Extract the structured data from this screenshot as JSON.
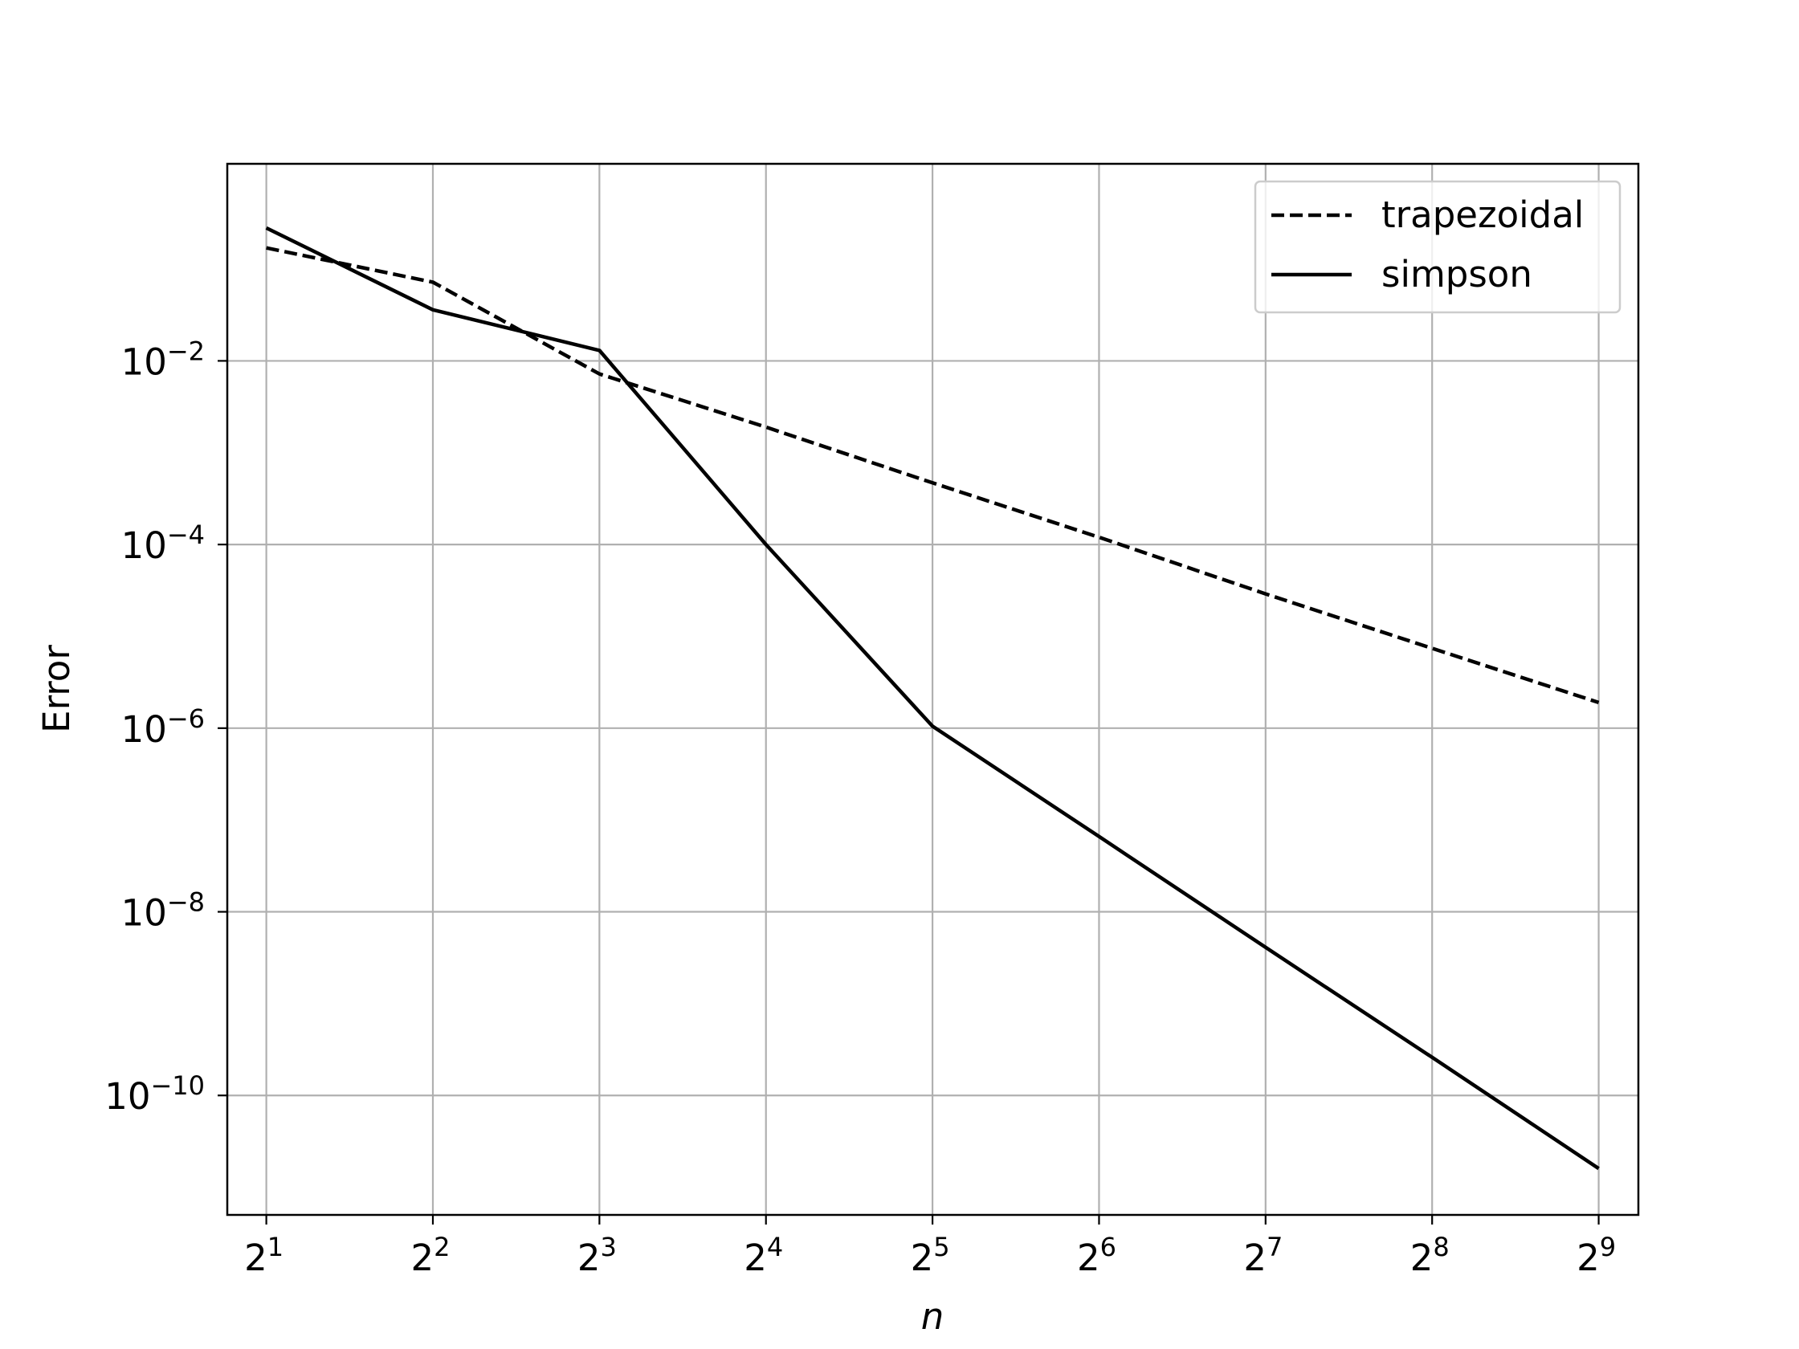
{
  "chart_data": {
    "type": "line",
    "title": "",
    "xlabel": "n",
    "ylabel": "Error",
    "x_scale": "log2",
    "y_scale": "log10",
    "x": [
      2,
      4,
      8,
      16,
      32,
      64,
      128,
      256,
      512
    ],
    "x_tick_labels": [
      {
        "base": "2",
        "exp": "1"
      },
      {
        "base": "2",
        "exp": "2"
      },
      {
        "base": "2",
        "exp": "3"
      },
      {
        "base": "2",
        "exp": "4"
      },
      {
        "base": "2",
        "exp": "5"
      },
      {
        "base": "2",
        "exp": "6"
      },
      {
        "base": "2",
        "exp": "7"
      },
      {
        "base": "2",
        "exp": "8"
      },
      {
        "base": "2",
        "exp": "9"
      }
    ],
    "y_ticks": [
      {
        "value": 0.01,
        "base": "10",
        "exp": "−2"
      },
      {
        "value": 0.0001,
        "base": "10",
        "exp": "−4"
      },
      {
        "value": 1e-06,
        "base": "10",
        "exp": "−6"
      },
      {
        "value": 1e-08,
        "base": "10",
        "exp": "−8"
      },
      {
        "value": 1e-10,
        "base": "10",
        "exp": "−10"
      }
    ],
    "xlim": [
      1.7,
      604
    ],
    "ylim": [
      5e-12,
      1.4
    ],
    "grid": true,
    "legend_position": "top-right",
    "series": [
      {
        "name": "trapezoidal",
        "style": "dashed",
        "color": "#000000",
        "values": [
          0.17,
          0.072,
          0.0072,
          0.0019,
          0.00047,
          0.00012,
          2.9e-05,
          7.4e-06,
          1.9e-06
        ]
      },
      {
        "name": "simpson",
        "style": "solid",
        "color": "#000000",
        "values": [
          0.28,
          0.036,
          0.013,
          0.0001,
          1.05e-06,
          6.6e-08,
          4.1e-09,
          2.6e-10,
          1.6e-11
        ]
      }
    ]
  }
}
